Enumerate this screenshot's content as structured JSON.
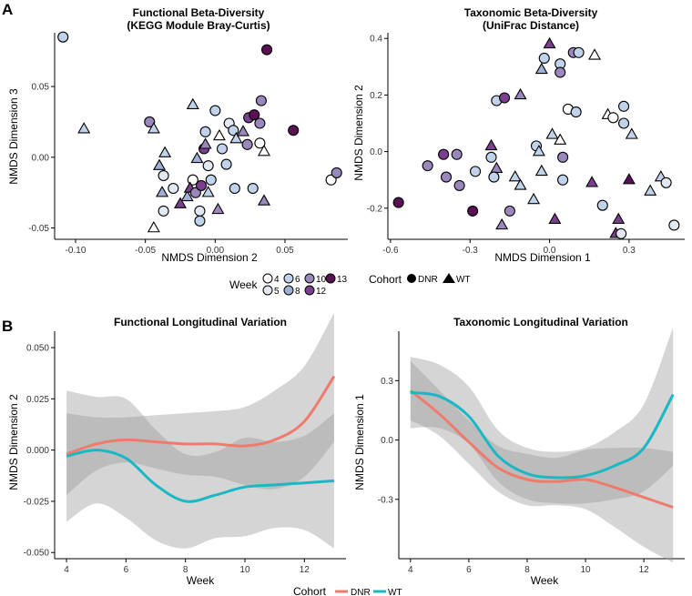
{
  "panel_labels": {
    "a": "A",
    "b": "B"
  },
  "legend_top": {
    "week_title": "Week",
    "weeks": [
      "4",
      "5",
      "6",
      "8",
      "10",
      "12",
      "13"
    ],
    "week_colors": [
      "#ffffff",
      "#e3e8f2",
      "#c1d3ea",
      "#9fb0d4",
      "#9a88bd",
      "#7a3f8e",
      "#5a1252"
    ],
    "cohort_title": "Cohort",
    "cohorts": [
      "DNR",
      "WT"
    ],
    "cohort_shapes": [
      "circle",
      "triangle"
    ]
  },
  "legend_bottom": {
    "title": "Cohort",
    "entries": [
      "DNR",
      "WT"
    ],
    "colors": [
      "#ef7b6d",
      "#19b8c4"
    ]
  },
  "chart_data": [
    {
      "type": "scatter",
      "title": "Functional Beta-Diversity",
      "subtitle": "(KEGG Module Bray-Curtis)",
      "xlabel": "NMDS Dimension 2",
      "ylabel": "NMDS Dimension 3",
      "xlim": [
        -0.115,
        0.095
      ],
      "ylim": [
        -0.058,
        0.088
      ],
      "xticks": [
        -0.1,
        -0.05,
        0.0,
        0.05
      ],
      "xtick_labels": [
        "-0.10",
        "-0.05",
        "0.00",
        "0.05"
      ],
      "yticks": [
        -0.05,
        0.0,
        0.05
      ],
      "ytick_labels": [
        "-0.05",
        "0.00",
        "0.05"
      ],
      "points": [
        {
          "x": -0.109,
          "y": 0.085,
          "week": 6,
          "cohort": "DNR"
        },
        {
          "x": -0.094,
          "y": 0.02,
          "week": 6,
          "cohort": "WT"
        },
        {
          "x": -0.047,
          "y": 0.025,
          "week": 10,
          "cohort": "DNR"
        },
        {
          "x": -0.044,
          "y": 0.02,
          "week": 6,
          "cohort": "WT"
        },
        {
          "x": -0.036,
          "y": 0.003,
          "week": 6,
          "cohort": "WT"
        },
        {
          "x": -0.04,
          "y": -0.006,
          "week": 8,
          "cohort": "WT"
        },
        {
          "x": -0.037,
          "y": -0.013,
          "week": 5,
          "cohort": "DNR"
        },
        {
          "x": -0.03,
          "y": -0.022,
          "week": 5,
          "cohort": "DNR"
        },
        {
          "x": -0.038,
          "y": -0.025,
          "week": 8,
          "cohort": "WT"
        },
        {
          "x": -0.037,
          "y": -0.038,
          "week": 5,
          "cohort": "DNR"
        },
        {
          "x": -0.044,
          "y": -0.05,
          "week": 4,
          "cohort": "WT"
        },
        {
          "x": -0.016,
          "y": 0.037,
          "week": 6,
          "cohort": "WT"
        },
        {
          "x": -0.013,
          "y": -0.001,
          "week": 8,
          "cohort": "WT"
        },
        {
          "x": -0.016,
          "y": -0.016,
          "week": 4,
          "cohort": "DNR"
        },
        {
          "x": -0.02,
          "y": -0.028,
          "week": 8,
          "cohort": "WT"
        },
        {
          "x": -0.025,
          "y": -0.033,
          "week": 12,
          "cohort": "WT"
        },
        {
          "x": -0.018,
          "y": -0.022,
          "week": 12,
          "cohort": "WT"
        },
        {
          "x": -0.014,
          "y": -0.025,
          "week": 10,
          "cohort": "DNR"
        },
        {
          "x": -0.011,
          "y": -0.038,
          "week": 5,
          "cohort": "DNR"
        },
        {
          "x": -0.011,
          "y": -0.045,
          "week": 6,
          "cohort": "DNR"
        },
        {
          "x": -0.005,
          "y": -0.006,
          "week": 5,
          "cohort": "DNR"
        },
        {
          "x": -0.003,
          "y": -0.016,
          "week": 6,
          "cohort": "DNR"
        },
        {
          "x": -0.005,
          "y": -0.025,
          "week": 6,
          "cohort": "WT"
        },
        {
          "x": -0.01,
          "y": -0.02,
          "week": 12,
          "cohort": "DNR"
        },
        {
          "x": -0.008,
          "y": 0.006,
          "week": 12,
          "cohort": "DNR"
        },
        {
          "x": -0.007,
          "y": 0.009,
          "week": 10,
          "cohort": "WT"
        },
        {
          "x": -0.007,
          "y": 0.018,
          "week": 6,
          "cohort": "DNR"
        },
        {
          "x": 0.0,
          "y": 0.033,
          "week": 6,
          "cohort": "DNR"
        },
        {
          "x": 0.003,
          "y": 0.015,
          "week": 4,
          "cohort": "WT"
        },
        {
          "x": 0.005,
          "y": 0.006,
          "week": 6,
          "cohort": "DNR"
        },
        {
          "x": 0.01,
          "y": 0.024,
          "week": 5,
          "cohort": "DNR"
        },
        {
          "x": 0.013,
          "y": 0.019,
          "week": 6,
          "cohort": "DNR"
        },
        {
          "x": 0.015,
          "y": 0.013,
          "week": 6,
          "cohort": "WT"
        },
        {
          "x": 0.008,
          "y": -0.005,
          "week": 6,
          "cohort": "DNR"
        },
        {
          "x": 0.014,
          "y": -0.022,
          "week": 6,
          "cohort": "DNR"
        },
        {
          "x": 0.002,
          "y": -0.037,
          "week": 10,
          "cohort": "WT"
        },
        {
          "x": 0.02,
          "y": 0.018,
          "week": 10,
          "cohort": "WT"
        },
        {
          "x": 0.023,
          "y": 0.009,
          "week": 10,
          "cohort": "DNR"
        },
        {
          "x": 0.024,
          "y": 0.028,
          "week": 12,
          "cohort": "DNR"
        },
        {
          "x": 0.028,
          "y": 0.03,
          "week": 13,
          "cohort": "DNR"
        },
        {
          "x": 0.033,
          "y": 0.04,
          "week": 10,
          "cohort": "DNR"
        },
        {
          "x": 0.032,
          "y": 0.024,
          "week": 10,
          "cohort": "DNR"
        },
        {
          "x": 0.032,
          "y": 0.01,
          "week": 4,
          "cohort": "DNR"
        },
        {
          "x": 0.035,
          "y": 0.004,
          "week": 4,
          "cohort": "WT"
        },
        {
          "x": 0.027,
          "y": -0.022,
          "week": 6,
          "cohort": "DNR"
        },
        {
          "x": 0.035,
          "y": -0.031,
          "week": 10,
          "cohort": "WT"
        },
        {
          "x": 0.037,
          "y": 0.076,
          "week": 13,
          "cohort": "DNR"
        },
        {
          "x": 0.056,
          "y": 0.019,
          "week": 13,
          "cohort": "DNR"
        },
        {
          "x": 0.083,
          "y": -0.016,
          "week": 4,
          "cohort": "DNR"
        },
        {
          "x": 0.087,
          "y": -0.011,
          "week": 10,
          "cohort": "DNR"
        }
      ]
    },
    {
      "type": "scatter",
      "title": "Taxonomic Beta-Diversity",
      "subtitle": "(UniFrac Distance)",
      "xlabel": "NMDS Dimension 1",
      "ylabel": "NMDS Dimension 2",
      "xlim": [
        -0.61,
        0.51
      ],
      "ylim": [
        -0.31,
        0.42
      ],
      "xticks": [
        -0.6,
        -0.3,
        0.0,
        0.3
      ],
      "xtick_labels": [
        "-0.6",
        "-0.3",
        "0.0",
        "0.3"
      ],
      "yticks": [
        -0.2,
        0.0,
        0.2,
        0.4
      ],
      "ytick_labels": [
        "-0.2",
        "0.0",
        "0.2",
        "0.4"
      ],
      "points": [
        {
          "x": -0.57,
          "y": -0.18,
          "week": 13,
          "cohort": "DNR"
        },
        {
          "x": -0.46,
          "y": -0.05,
          "week": 10,
          "cohort": "DNR"
        },
        {
          "x": -0.4,
          "y": -0.01,
          "week": 12,
          "cohort": "DNR"
        },
        {
          "x": -0.35,
          "y": -0.01,
          "week": 10,
          "cohort": "DNR"
        },
        {
          "x": -0.39,
          "y": -0.09,
          "week": 10,
          "cohort": "DNR"
        },
        {
          "x": -0.34,
          "y": -0.12,
          "week": 10,
          "cohort": "DNR"
        },
        {
          "x": -0.28,
          "y": -0.07,
          "week": 6,
          "cohort": "DNR"
        },
        {
          "x": -0.29,
          "y": -0.21,
          "week": 13,
          "cohort": "DNR"
        },
        {
          "x": -0.22,
          "y": -0.02,
          "week": 6,
          "cohort": "DNR"
        },
        {
          "x": -0.22,
          "y": 0.02,
          "week": 12,
          "cohort": "WT"
        },
        {
          "x": -0.2,
          "y": -0.06,
          "week": 10,
          "cohort": "WT"
        },
        {
          "x": -0.21,
          "y": -0.09,
          "week": 6,
          "cohort": "DNR"
        },
        {
          "x": -0.15,
          "y": -0.21,
          "week": 10,
          "cohort": "DNR"
        },
        {
          "x": -0.18,
          "y": -0.26,
          "week": 10,
          "cohort": "WT"
        },
        {
          "x": -0.2,
          "y": 0.18,
          "week": 6,
          "cohort": "DNR"
        },
        {
          "x": -0.17,
          "y": 0.19,
          "week": 12,
          "cohort": "DNR"
        },
        {
          "x": -0.11,
          "y": 0.2,
          "week": 10,
          "cohort": "WT"
        },
        {
          "x": -0.13,
          "y": -0.09,
          "week": 6,
          "cohort": "WT"
        },
        {
          "x": -0.11,
          "y": -0.12,
          "week": 6,
          "cohort": "WT"
        },
        {
          "x": -0.05,
          "y": 0.02,
          "week": 6,
          "cohort": "DNR"
        },
        {
          "x": -0.04,
          "y": 0.0,
          "week": 6,
          "cohort": "WT"
        },
        {
          "x": -0.03,
          "y": -0.07,
          "week": 6,
          "cohort": "WT"
        },
        {
          "x": -0.06,
          "y": -0.17,
          "week": 6,
          "cohort": "WT"
        },
        {
          "x": -0.03,
          "y": 0.29,
          "week": 8,
          "cohort": "WT"
        },
        {
          "x": -0.02,
          "y": 0.33,
          "week": 6,
          "cohort": "DNR"
        },
        {
          "x": 0.0,
          "y": 0.38,
          "week": 12,
          "cohort": "WT"
        },
        {
          "x": 0.04,
          "y": 0.31,
          "week": 6,
          "cohort": "DNR"
        },
        {
          "x": 0.04,
          "y": 0.28,
          "week": 10,
          "cohort": "DNR"
        },
        {
          "x": 0.09,
          "y": 0.35,
          "week": 10,
          "cohort": "DNR"
        },
        {
          "x": 0.11,
          "y": 0.35,
          "week": 6,
          "cohort": "DNR"
        },
        {
          "x": 0.01,
          "y": 0.06,
          "week": 6,
          "cohort": "WT"
        },
        {
          "x": 0.04,
          "y": 0.04,
          "week": 4,
          "cohort": "WT"
        },
        {
          "x": 0.05,
          "y": -0.02,
          "week": 10,
          "cohort": "DNR"
        },
        {
          "x": 0.05,
          "y": -0.1,
          "week": 6,
          "cohort": "DNR"
        },
        {
          "x": 0.02,
          "y": -0.24,
          "week": 12,
          "cohort": "WT"
        },
        {
          "x": 0.07,
          "y": 0.15,
          "week": 4,
          "cohort": "DNR"
        },
        {
          "x": 0.1,
          "y": 0.14,
          "week": 6,
          "cohort": "DNR"
        },
        {
          "x": 0.17,
          "y": 0.34,
          "week": 4,
          "cohort": "WT"
        },
        {
          "x": 0.22,
          "y": 0.13,
          "week": 4,
          "cohort": "WT"
        },
        {
          "x": 0.24,
          "y": 0.12,
          "week": 4,
          "cohort": "DNR"
        },
        {
          "x": 0.28,
          "y": 0.16,
          "week": 6,
          "cohort": "DNR"
        },
        {
          "x": 0.28,
          "y": 0.1,
          "week": 6,
          "cohort": "DNR"
        },
        {
          "x": 0.31,
          "y": 0.06,
          "week": 6,
          "cohort": "WT"
        },
        {
          "x": 0.16,
          "y": -0.11,
          "week": 12,
          "cohort": "WT"
        },
        {
          "x": 0.2,
          "y": -0.19,
          "week": 6,
          "cohort": "DNR"
        },
        {
          "x": 0.25,
          "y": -0.29,
          "week": 12,
          "cohort": "WT"
        },
        {
          "x": 0.26,
          "y": -0.24,
          "week": 12,
          "cohort": "WT"
        },
        {
          "x": 0.27,
          "y": -0.29,
          "week": 5,
          "cohort": "DNR"
        },
        {
          "x": 0.3,
          "y": -0.1,
          "week": 13,
          "cohort": "WT"
        },
        {
          "x": 0.38,
          "y": -0.14,
          "week": 6,
          "cohort": "WT"
        },
        {
          "x": 0.42,
          "y": -0.09,
          "week": 6,
          "cohort": "WT"
        },
        {
          "x": 0.44,
          "y": -0.11,
          "week": 5,
          "cohort": "DNR"
        },
        {
          "x": 0.47,
          "y": -0.26,
          "week": 5,
          "cohort": "DNR"
        }
      ]
    },
    {
      "type": "line",
      "title": "Functional Longitudinal Variation",
      "xlabel": "Week",
      "ylabel": "NMDS Dimension 2",
      "xlim": [
        3.6,
        13.4
      ],
      "ylim": [
        -0.053,
        0.058
      ],
      "xticks": [
        4,
        6,
        8,
        10,
        12
      ],
      "xtick_labels": [
        "4",
        "6",
        "8",
        "10",
        "12"
      ],
      "yticks": [
        -0.05,
        -0.025,
        0.0,
        0.025,
        0.05
      ],
      "ytick_labels": [
        "-0.050",
        "-0.025",
        "0.000",
        "0.025",
        "0.050"
      ],
      "x": [
        4,
        5,
        6,
        7,
        8,
        9,
        10,
        11,
        12,
        13
      ],
      "series": [
        {
          "name": "DNR",
          "values": [
            -0.002,
            0.003,
            0.005,
            0.004,
            0.003,
            0.003,
            0.002,
            0.005,
            0.014,
            0.036
          ],
          "lower": [
            -0.022,
            -0.01,
            -0.006,
            -0.009,
            -0.012,
            -0.013,
            -0.017,
            -0.019,
            -0.013,
            0.004
          ],
          "upper": [
            0.018,
            0.016,
            0.016,
            0.017,
            0.018,
            0.019,
            0.021,
            0.029,
            0.041,
            0.067
          ]
        },
        {
          "name": "WT",
          "values": [
            -0.003,
            0.0,
            -0.004,
            -0.017,
            -0.025,
            -0.022,
            -0.018,
            -0.017,
            -0.016,
            -0.015
          ],
          "lower": [
            -0.035,
            -0.026,
            -0.033,
            -0.044,
            -0.048,
            -0.043,
            -0.042,
            -0.038,
            -0.039,
            -0.048
          ],
          "upper": [
            0.029,
            0.026,
            0.025,
            0.01,
            -0.002,
            -0.001,
            0.006,
            0.004,
            0.007,
            0.018
          ]
        }
      ]
    },
    {
      "type": "line",
      "title": "Taxonomic Longitudinal Variation",
      "xlabel": "Week",
      "ylabel": "NMDS Dimension 1",
      "xlim": [
        3.6,
        13.4
      ],
      "ylim": [
        -0.6,
        0.55
      ],
      "xticks": [
        4,
        6,
        8,
        10,
        12
      ],
      "xtick_labels": [
        "4",
        "6",
        "8",
        "10",
        "12"
      ],
      "yticks": [
        -0.3,
        0.0,
        0.3
      ],
      "ytick_labels": [
        "-0.3",
        "0.0",
        "0.3"
      ],
      "x": [
        4,
        5,
        6,
        7,
        8,
        9,
        10,
        11,
        12,
        13
      ],
      "series": [
        {
          "name": "DNR",
          "values": [
            0.25,
            0.13,
            -0.01,
            -0.14,
            -0.2,
            -0.21,
            -0.2,
            -0.24,
            -0.29,
            -0.34
          ],
          "lower": [
            0.1,
            0.02,
            -0.12,
            -0.26,
            -0.33,
            -0.33,
            -0.35,
            -0.44,
            -0.54,
            -0.62
          ],
          "upper": [
            0.4,
            0.25,
            0.1,
            -0.03,
            -0.07,
            -0.09,
            -0.05,
            -0.04,
            -0.04,
            -0.06
          ]
        },
        {
          "name": "WT",
          "values": [
            0.24,
            0.22,
            0.12,
            -0.08,
            -0.17,
            -0.19,
            -0.18,
            -0.13,
            -0.04,
            0.23
          ],
          "lower": [
            0.06,
            0.06,
            -0.02,
            -0.21,
            -0.3,
            -0.32,
            -0.32,
            -0.3,
            -0.26,
            -0.13
          ],
          "upper": [
            0.42,
            0.38,
            0.27,
            0.05,
            -0.04,
            -0.06,
            -0.04,
            0.04,
            0.18,
            0.57
          ]
        }
      ]
    }
  ]
}
